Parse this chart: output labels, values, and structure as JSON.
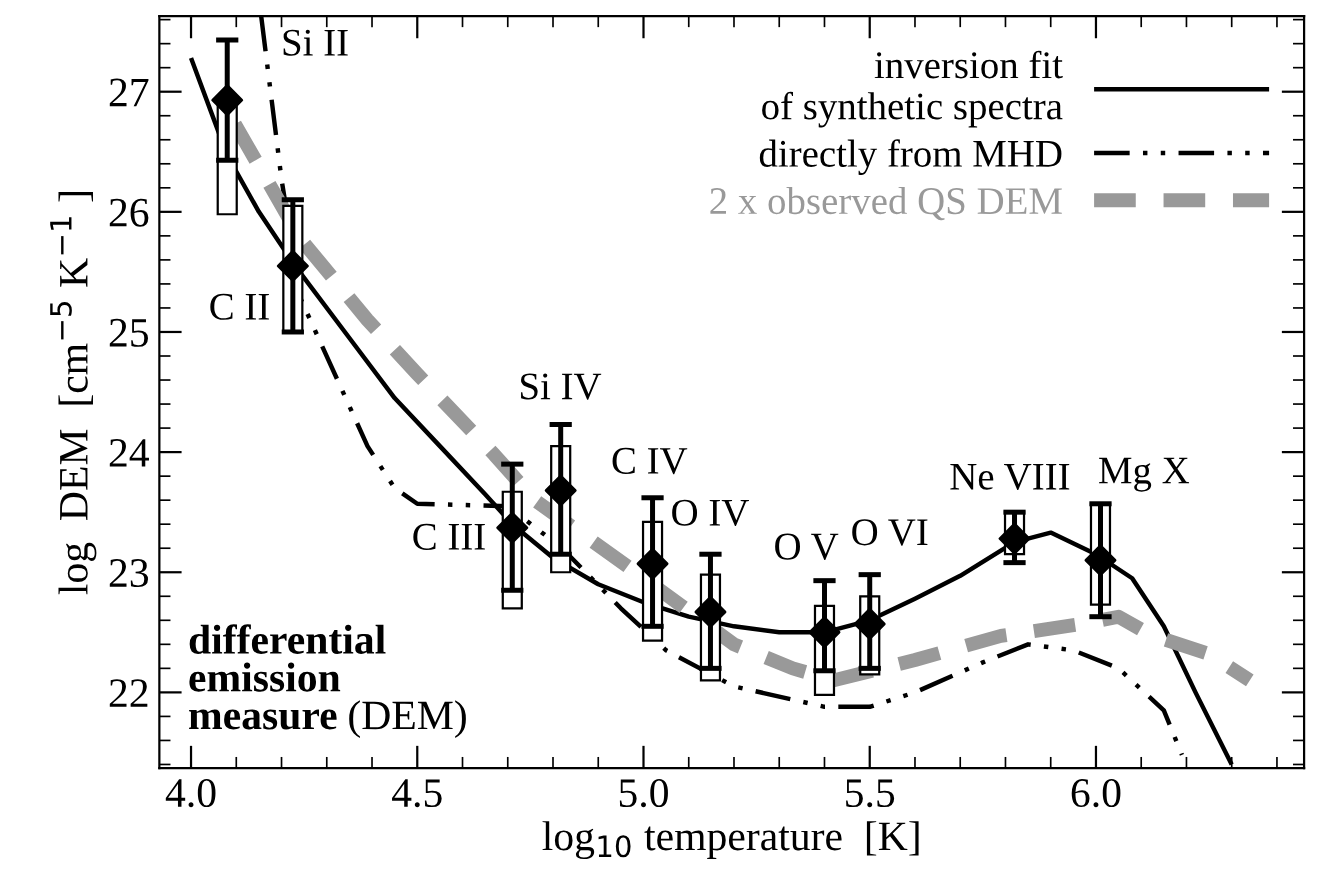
{
  "chart_data": {
    "type": "line",
    "xlabel": "log$_{10}$ temperature  [K]",
    "ylabel": "log  DEM  [cm$^{−5}$ K$^{−1}$ ]",
    "xlim": [
      3.93,
      6.46
    ],
    "ylim": [
      21.37,
      27.63
    ],
    "xticks": [
      {
        "value": 4,
        "label": "4.0"
      },
      {
        "value": 4.5,
        "label": "4.5"
      },
      {
        "value": 5,
        "label": "5.0"
      },
      {
        "value": 5.5,
        "label": "5.5"
      },
      {
        "value": 6,
        "label": "6.0"
      }
    ],
    "yticks": [
      22,
      23,
      24,
      25,
      26,
      27
    ],
    "grid": false,
    "legend": "top right",
    "series": [
      {
        "name": "inversion fit\nof synthetic spectra",
        "line_style": "solid",
        "color": "#000000",
        "x": [
          4.0,
          4.08,
          4.15,
          4.23,
          4.35,
          4.45,
          4.55,
          4.65,
          4.71,
          4.8,
          4.9,
          5.0,
          5.1,
          5.2,
          5.3,
          5.4,
          5.5,
          5.6,
          5.7,
          5.82,
          5.9,
          6.0,
          6.08,
          6.15,
          6.22,
          6.3
        ],
        "values": [
          27.28,
          26.47,
          26.0,
          25.55,
          24.95,
          24.45,
          24.05,
          23.65,
          23.4,
          23.12,
          22.9,
          22.75,
          22.63,
          22.55,
          22.5,
          22.5,
          22.6,
          22.78,
          22.97,
          23.25,
          23.33,
          23.15,
          22.95,
          22.55,
          22.0,
          21.4
        ]
      },
      {
        "name": "directly from MHD",
        "line_style": "dashdotdot",
        "color": "#000000",
        "x": [
          4.155,
          4.2,
          4.243,
          4.39,
          4.45,
          4.5,
          4.7,
          4.82,
          4.95,
          5.05,
          5.2,
          5.4,
          5.5,
          5.6,
          5.75,
          5.85,
          5.95,
          6.05,
          6.15,
          6.19
        ],
        "values": [
          27.63,
          26.27,
          25.27,
          24.05,
          23.7,
          23.57,
          23.55,
          23.2,
          22.7,
          22.35,
          22.05,
          21.88,
          21.88,
          22.0,
          22.25,
          22.4,
          22.35,
          22.2,
          21.85,
          21.48
        ]
      },
      {
        "name": "2 x observed QS DEM",
        "line_style": "dashed",
        "color": "#999999",
        "x": [
          4.097,
          4.243,
          4.39,
          4.5,
          4.67,
          4.76,
          4.99,
          5.2,
          5.33,
          5.42,
          5.6,
          5.79,
          5.97,
          6.05,
          6.12,
          6.25,
          6.34
        ],
        "values": [
          26.73,
          25.77,
          25.1,
          24.65,
          23.98,
          23.6,
          22.98,
          22.4,
          22.2,
          22.1,
          22.27,
          22.47,
          22.57,
          22.63,
          22.48,
          22.32,
          22.1
        ]
      },
      {
        "type": "bar",
        "color": "#ffffff",
        "x": [
          4.08,
          4.225,
          4.71,
          4.817,
          5.02,
          5.148,
          5.4,
          5.5,
          5.82,
          6.01
        ],
        "base": [
          25.98,
          25.0,
          22.7,
          23.0,
          22.43,
          22.1,
          21.98,
          22.15,
          23.15,
          22.73
        ],
        "values": [
          0.92,
          1.05,
          0.97,
          1.05,
          0.99,
          0.88,
          0.74,
          0.65,
          0.35,
          0.84
        ]
      },
      {
        "type": "scatter",
        "marker": "diamond",
        "color": "#000000",
        "x": [
          4.08,
          4.225,
          4.71,
          4.817,
          5.02,
          5.148,
          5.4,
          5.5,
          5.82,
          6.01
        ],
        "values": [
          26.93,
          25.55,
          23.37,
          23.68,
          23.07,
          22.67,
          22.5,
          22.57,
          23.28,
          23.1
        ],
        "errors": [
          [
            26.43,
            27.43
          ],
          [
            25.0,
            26.1
          ],
          [
            22.85,
            23.9
          ],
          [
            23.15,
            24.23
          ],
          [
            22.55,
            23.62
          ],
          [
            22.2,
            23.15
          ],
          [
            22.18,
            22.93
          ],
          [
            22.2,
            22.98
          ],
          [
            23.08,
            23.5
          ],
          [
            22.63,
            23.57
          ]
        ]
      }
    ],
    "annotations": [
      "Si II",
      "C II",
      "C III",
      "Si IV",
      "C IV",
      "O IV",
      "O V",
      "O VI",
      "Ne VIII",
      "Mg X",
      "differential\nemission\nmeasure",
      "(DEM)"
    ]
  }
}
